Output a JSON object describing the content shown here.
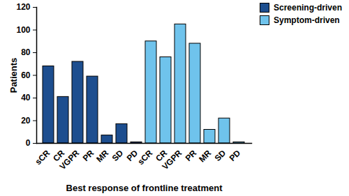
{
  "chart_data": {
    "type": "bar",
    "x_label": "Best response of frontline treatment",
    "y_label": "Patients",
    "categories": [
      "sCR",
      "CR",
      "VGPR",
      "PR",
      "MR",
      "SD",
      "PD",
      "sCR",
      "CR",
      "VGPR",
      "PR",
      "MR",
      "SD",
      "PD"
    ],
    "series": [
      {
        "name": "Screening-driven",
        "color": "#1d4e8f",
        "values": [
          68,
          41,
          72,
          59,
          7,
          17,
          1,
          null,
          null,
          null,
          null,
          null,
          null,
          null
        ]
      },
      {
        "name": "Symptom-driven",
        "color": "#6fc3ec",
        "values": [
          null,
          null,
          null,
          null,
          null,
          null,
          null,
          90,
          76,
          105,
          88,
          12,
          22,
          1
        ]
      }
    ],
    "ylim": [
      0,
      120
    ],
    "yticks": [
      0,
      20,
      40,
      60,
      80,
      100,
      120
    ],
    "grid": false,
    "legend": "upper right"
  }
}
